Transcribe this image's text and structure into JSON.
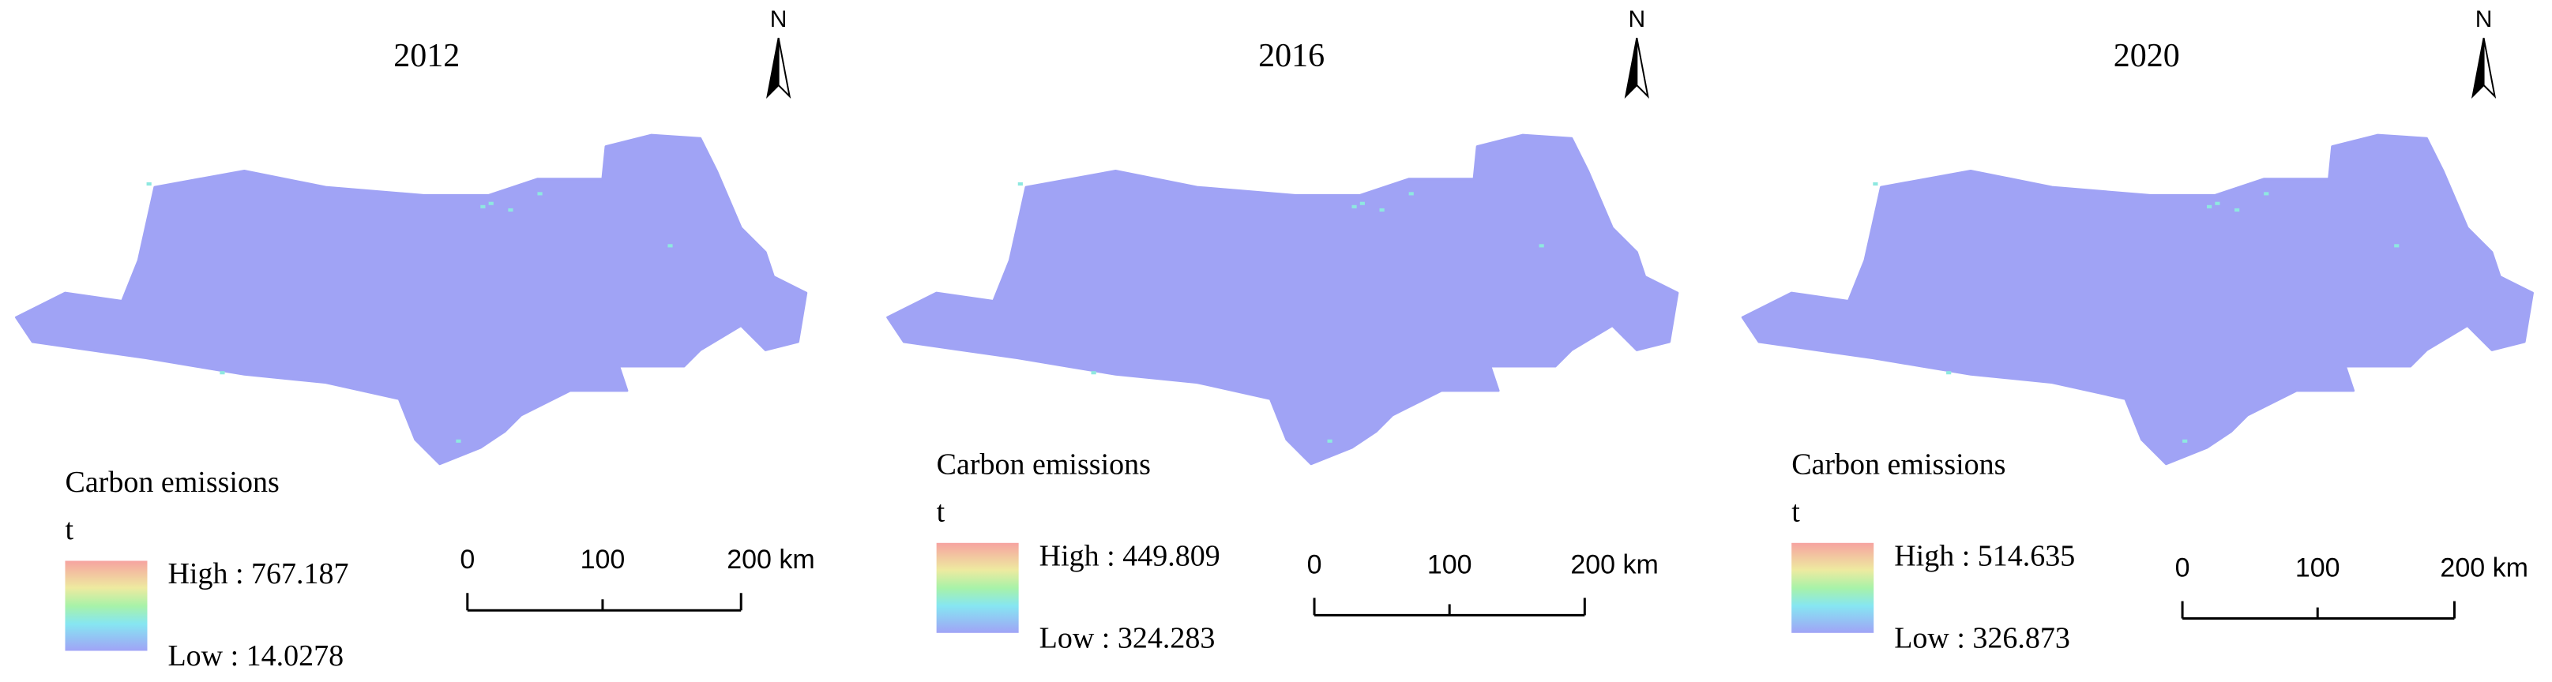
{
  "panels": [
    {
      "title": "2012",
      "north": "N",
      "legend": {
        "title": "Carbon emissions",
        "unit": "t",
        "high": "High : 767.187",
        "low": "Low : 14.0278"
      },
      "scale": [
        "0",
        "100",
        "200 km"
      ]
    },
    {
      "title": "2016",
      "north": "N",
      "legend": {
        "title": "Carbon emissions",
        "unit": "t",
        "high": "High : 449.809",
        "low": "Low : 324.283"
      },
      "scale": [
        "0",
        "100",
        "200 km"
      ]
    },
    {
      "title": "2020",
      "north": "N",
      "legend": {
        "title": "Carbon emissions",
        "unit": "t",
        "high": "High : 514.635",
        "low": "Low : 326.873"
      },
      "scale": [
        "0",
        "100",
        "200 km"
      ]
    }
  ]
}
